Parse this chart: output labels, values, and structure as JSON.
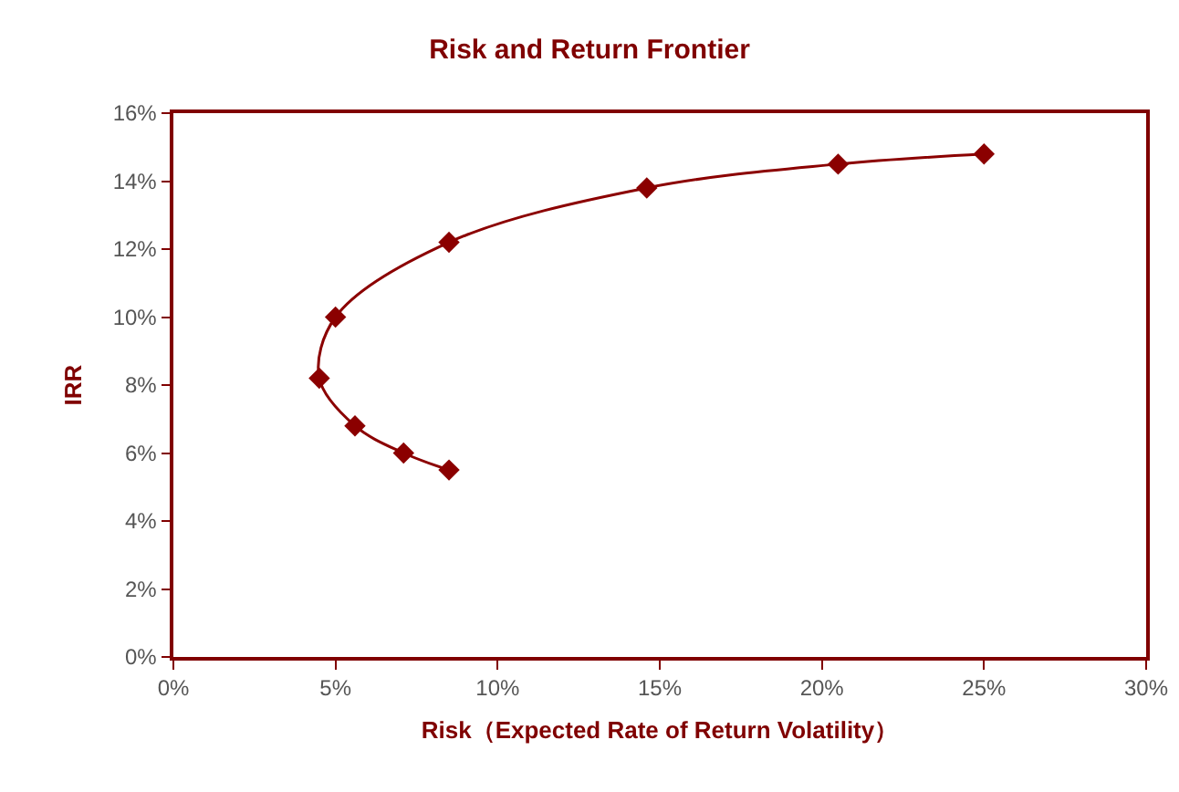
{
  "chart_data": {
    "type": "line",
    "title": "Risk and Return Frontier",
    "xlabel": "Risk（Expected Rate of Return Volatility）",
    "ylabel": "IRR",
    "x": [
      8.5,
      7.1,
      5.6,
      4.5,
      5.0,
      8.5,
      14.6,
      20.5,
      25.0
    ],
    "series": [
      {
        "color": "#8b0000",
        "values": [
          5.5,
          6.0,
          6.8,
          8.2,
          10.0,
          12.2,
          13.8,
          14.5,
          14.8
        ]
      }
    ],
    "xlim": [
      0,
      30
    ],
    "xticks": [
      {
        "value": 0,
        "label": "0%"
      },
      {
        "value": 5,
        "label": "5%"
      },
      {
        "value": 10,
        "label": "10%"
      },
      {
        "value": 15,
        "label": "15%"
      },
      {
        "value": 20,
        "label": "20%"
      },
      {
        "value": 25,
        "label": "25%"
      },
      {
        "value": 30,
        "label": "30%"
      }
    ],
    "ylim": [
      0,
      16
    ],
    "yticks": [
      {
        "value": 0,
        "label": "0%"
      },
      {
        "value": 2,
        "label": "2%"
      },
      {
        "value": 4,
        "label": "4%"
      },
      {
        "value": 6,
        "label": "6%"
      },
      {
        "value": 8,
        "label": "8%"
      },
      {
        "value": 10,
        "label": "10%"
      },
      {
        "value": 12,
        "label": "12%"
      },
      {
        "value": 14,
        "label": "14%"
      },
      {
        "value": 16,
        "label": "16%"
      }
    ],
    "grid": false,
    "marker": "diamond",
    "line_style": "solid"
  }
}
